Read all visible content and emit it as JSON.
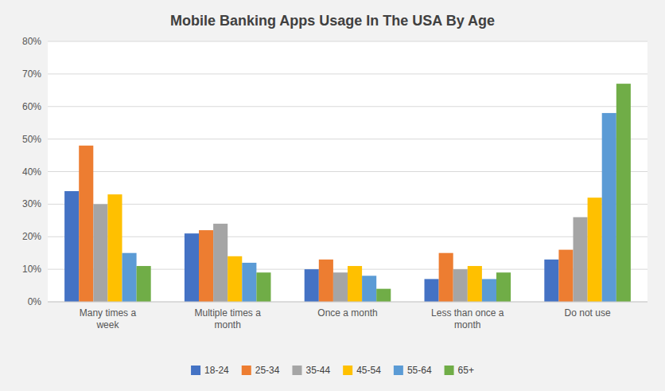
{
  "chart_data": {
    "type": "bar",
    "title": "Mobile Banking Apps Usage In The USA By Age",
    "categories": [
      "Many times a\nweek",
      "Multiple times a\nmonth",
      "Once a month",
      "Less than once a\nmonth",
      "Do not use"
    ],
    "series": [
      {
        "name": "18-24",
        "color": "#4472C4",
        "values": [
          34,
          21,
          10,
          7,
          13
        ]
      },
      {
        "name": "25-34",
        "color": "#ED7D31",
        "values": [
          48,
          22,
          13,
          15,
          16
        ]
      },
      {
        "name": "35-44",
        "color": "#A5A5A5",
        "values": [
          30,
          24,
          9,
          10,
          26
        ]
      },
      {
        "name": "45-54",
        "color": "#FFC000",
        "values": [
          33,
          14,
          11,
          11,
          32
        ]
      },
      {
        "name": "55-64",
        "color": "#5B9BD5",
        "values": [
          15,
          12,
          8,
          7,
          58
        ]
      },
      {
        "name": "65+",
        "color": "#70AD47",
        "values": [
          11,
          9,
          4,
          9,
          67
        ]
      }
    ],
    "ylim": [
      0,
      80
    ],
    "yticks": [
      {
        "value": 0,
        "label": "0%"
      },
      {
        "value": 10,
        "label": "10%"
      },
      {
        "value": 20,
        "label": "20%"
      },
      {
        "value": 30,
        "label": "30%"
      },
      {
        "value": 40,
        "label": "40%"
      },
      {
        "value": 50,
        "label": "50%"
      },
      {
        "value": 60,
        "label": "60%"
      },
      {
        "value": 70,
        "label": "70%"
      },
      {
        "value": 80,
        "label": "80%"
      }
    ],
    "grid": true,
    "legend": "bottom"
  }
}
